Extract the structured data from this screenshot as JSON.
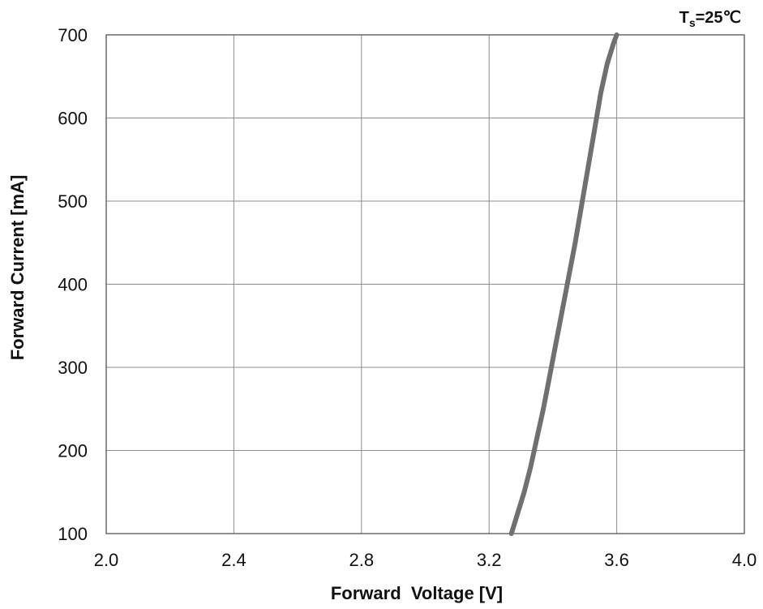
{
  "chart_data": {
    "type": "line",
    "title": "",
    "annotation": {
      "symbol": "T",
      "subscript": "s",
      "value": "=25℃"
    },
    "xlabel": "Forward  Voltage [V]",
    "ylabel": "Forward Current [mA]",
    "xlim": [
      2.0,
      4.0
    ],
    "ylim": [
      100,
      700
    ],
    "xticks": [
      2.0,
      2.4,
      2.8,
      3.2,
      3.6,
      4.0
    ],
    "xtick_labels": [
      "2.0",
      "2.4",
      "2.8",
      "3.2",
      "3.6",
      "4.0"
    ],
    "yticks": [
      100,
      200,
      300,
      400,
      500,
      600,
      700
    ],
    "ytick_labels": [
      "100",
      "200",
      "300",
      "400",
      "500",
      "600",
      "700"
    ],
    "grid": true,
    "legend": "none",
    "series": [
      {
        "color": "#707070",
        "x": [
          3.27,
          3.29,
          3.31,
          3.33,
          3.35,
          3.37,
          3.39,
          3.41,
          3.43,
          3.45,
          3.47,
          3.49,
          3.51,
          3.53,
          3.55,
          3.57,
          3.59,
          3.6
        ],
        "y": [
          100,
          125,
          150,
          180,
          215,
          250,
          290,
          330,
          370,
          410,
          450,
          495,
          540,
          585,
          630,
          665,
          690,
          700
        ]
      }
    ]
  }
}
